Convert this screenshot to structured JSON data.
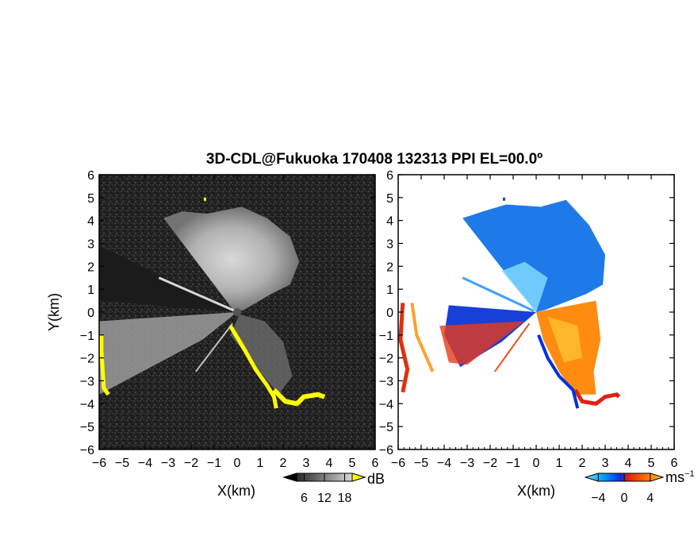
{
  "chart_data": {
    "type": "heatmap",
    "title": "3D-CDL@Fukuoka 170408 132313 PPI EL=00.0º",
    "panels": [
      {
        "id": "reflectivity",
        "xlabel": "X(km)",
        "ylabel": "Y(km)",
        "xlim": [
          -6,
          6
        ],
        "ylim": [
          -6,
          6
        ],
        "xticks": [
          "−6",
          "−5",
          "−4",
          "−3",
          "−2",
          "−1",
          "0",
          "1",
          "2",
          "3",
          "4",
          "5",
          "6"
        ],
        "yticks": [
          "6",
          "5",
          "4",
          "3",
          "2",
          "1",
          "0",
          "−1",
          "−2",
          "−3",
          "−4",
          "−5",
          "−6"
        ],
        "colorbar": {
          "unit": "dB",
          "ticks": [
            "6",
            "12",
            "18"
          ],
          "range": [
            0,
            24
          ],
          "colors": [
            "#000000",
            "#ffffff"
          ]
        },
        "overlay_color": "#ffff00",
        "background_color": "#262626"
      },
      {
        "id": "doppler-velocity",
        "xlabel": "X(km)",
        "xlim": [
          -6,
          6
        ],
        "ylim": [
          -6,
          6
        ],
        "xticks": [
          "−6",
          "−5",
          "−4",
          "−3",
          "−2",
          "−1",
          "0",
          "1",
          "2",
          "3",
          "4",
          "5",
          "6"
        ],
        "colorbar": {
          "unit": "ms",
          "unit_exp": "−1",
          "ticks": [
            "−4",
            "0",
            "4"
          ],
          "range": [
            -6,
            6
          ],
          "colors": [
            "#7fe0ff",
            "#00a0ff",
            "#0030e0",
            "#e02010",
            "#ff7000",
            "#ffc020"
          ]
        },
        "approach_color": "#1e7ae8",
        "recede_color": "#ff8c10"
      }
    ]
  }
}
